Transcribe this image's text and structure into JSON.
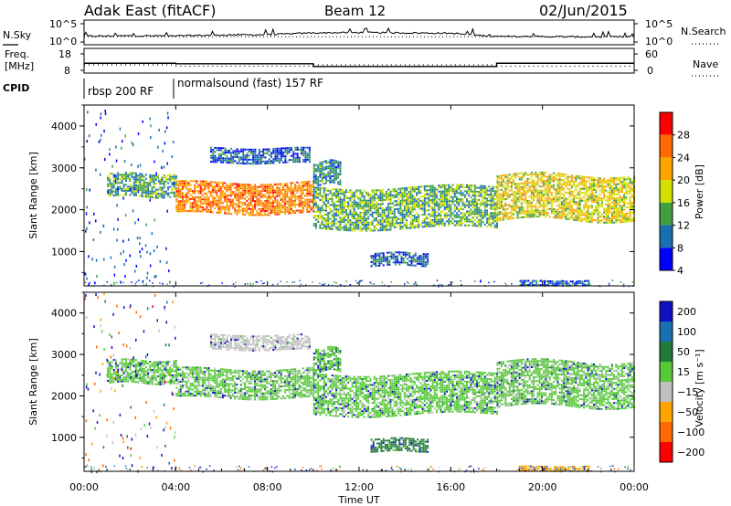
{
  "header": {
    "station": "Adak East (fitACF)",
    "beam": "Beam 12",
    "date": "02/Jun/2015"
  },
  "noise_panel": {
    "left_label": "N.Sky",
    "right_label": "N.Search",
    "left_ticks": [
      "10^5",
      "10^0"
    ],
    "right_ticks": [
      "10^5",
      "10^0"
    ]
  },
  "freq_panel": {
    "left_label_1": "Freq.",
    "left_label_2": "[MHz]",
    "right_label": "Nave",
    "left_ticks": [
      "18",
      "8"
    ],
    "right_ticks": [
      "60",
      "0"
    ]
  },
  "cpid": {
    "label": "CPID",
    "modes": [
      {
        "name": "rbsp 200 RF",
        "start_hour": 0,
        "end_hour": 4
      },
      {
        "name": "normalsound (fast) 157 RF",
        "start_hour": 4,
        "end_hour": 24
      }
    ]
  },
  "power_colorbar": {
    "label": "Power [dB]",
    "ticks": [
      "28",
      "24",
      "20",
      "16",
      "12",
      "8",
      "4"
    ],
    "colors": [
      "#ff0000",
      "#ff6a00",
      "#ffa500",
      "#d4e000",
      "#40a040",
      "#1a6fb0",
      "#0000ff"
    ]
  },
  "velocity_colorbar": {
    "label": "Velocity [m s⁻¹]",
    "ticks": [
      "200",
      "100",
      "50",
      "15",
      "−15",
      "−50",
      "−100",
      "−200"
    ],
    "colors": [
      "#1010c0",
      "#1a6fb0",
      "#207a3a",
      "#57c83a",
      "#c0c0c0",
      "#ffa500",
      "#ff6a00",
      "#ff0000"
    ]
  },
  "axes": {
    "ylabel": "Slant Range [km]",
    "yticks": [
      "4000",
      "3000",
      "2000",
      "1000"
    ],
    "xlabel": "Time UT",
    "xticks": [
      "00:00",
      "04:00",
      "08:00",
      "12:00",
      "16:00",
      "20:00",
      "00:00"
    ]
  },
  "chart_data": [
    {
      "type": "line",
      "title": "N.Sky / N.Search",
      "x_hours": [
        0,
        2,
        4,
        6,
        8,
        10,
        12,
        14,
        16,
        18,
        20,
        22,
        24
      ],
      "series": [
        {
          "name": "N.Sky",
          "values": [
            1.6,
            1.7,
            1.7,
            1.9,
            2.0,
            2.5,
            2.6,
            2.5,
            2.4,
            1.5,
            1.5,
            1.4,
            1.4
          ]
        }
      ],
      "ylim": [
        0,
        5
      ],
      "scale": "log10"
    },
    {
      "type": "line",
      "title": "Freq. [MHz] / Nave",
      "series": [
        {
          "name": "Freq.",
          "segments": [
            {
              "start_hour": 0,
              "end_hour": 4,
              "value": 12.3
            },
            {
              "start_hour": 4,
              "end_hour": 10,
              "value": 12.0
            },
            {
              "start_hour": 10,
              "end_hour": 18,
              "value": 10.3
            },
            {
              "start_hour": 18,
              "end_hour": 24,
              "value": 12.3
            }
          ]
        },
        {
          "name": "Nave",
          "segments": [
            {
              "start_hour": 0,
              "end_hour": 4,
              "value": 20
            },
            {
              "start_hour": 4,
              "end_hour": 10,
              "value": 15
            },
            {
              "start_hour": 10,
              "end_hour": 18,
              "value": 20
            },
            {
              "start_hour": 18,
              "end_hour": 24,
              "value": 15
            }
          ]
        }
      ],
      "ylim_left": [
        8,
        18
      ],
      "ylim_right": [
        0,
        60
      ]
    },
    {
      "type": "heatmap",
      "quantity": "Power [dB]",
      "xlabel": "Time UT",
      "ylabel": "Slant Range [km]",
      "xlim_hours": [
        0,
        24
      ],
      "ylim_km": [
        180,
        4500
      ],
      "clim": [
        0,
        30
      ],
      "regions": [
        {
          "t_start": 1.0,
          "t_end": 4.0,
          "range_start": 2300,
          "range_end": 2900,
          "power": 10
        },
        {
          "t_start": 4.0,
          "t_end": 10.0,
          "range_start": 1900,
          "range_end": 2700,
          "power": 22
        },
        {
          "t_start": 5.5,
          "t_end": 9.8,
          "range_start": 3100,
          "range_end": 3500,
          "power": 6
        },
        {
          "t_start": 10.0,
          "t_end": 18.0,
          "range_start": 1500,
          "range_end": 2600,
          "power": 11
        },
        {
          "t_start": 10.0,
          "t_end": 11.2,
          "range_start": 2600,
          "range_end": 3200,
          "power": 8
        },
        {
          "t_start": 12.5,
          "t_end": 15.0,
          "range_start": 650,
          "range_end": 1000,
          "power": 6
        },
        {
          "t_start": 18.0,
          "t_end": 24.0,
          "range_start": 1700,
          "range_end": 2900,
          "power": 16
        },
        {
          "t_start": 19.0,
          "t_end": 22.0,
          "range_start": 180,
          "range_end": 320,
          "power": 5
        }
      ]
    },
    {
      "type": "heatmap",
      "quantity": "Velocity [m s⁻¹]",
      "xlabel": "Time UT",
      "ylabel": "Slant Range [km]",
      "xlim_hours": [
        0,
        24
      ],
      "ylim_km": [
        180,
        4500
      ],
      "clim": [
        -200,
        200
      ],
      "regions": [
        {
          "t_start": 1.0,
          "t_end": 4.0,
          "range_start": 2300,
          "range_end": 2900,
          "velocity": 0
        },
        {
          "t_start": 4.0,
          "t_end": 10.0,
          "range_start": 1900,
          "range_end": 2700,
          "velocity": 0
        },
        {
          "t_start": 5.5,
          "t_end": 9.8,
          "range_start": 3100,
          "range_end": 3500,
          "velocity": -30
        },
        {
          "t_start": 10.0,
          "t_end": 18.0,
          "range_start": 1500,
          "range_end": 2600,
          "velocity": 0
        },
        {
          "t_start": 10.0,
          "t_end": 11.2,
          "range_start": 2600,
          "range_end": 3200,
          "velocity": 10
        },
        {
          "t_start": 12.5,
          "t_end": 15.0,
          "range_start": 650,
          "range_end": 1000,
          "velocity": 30
        },
        {
          "t_start": 18.0,
          "t_end": 24.0,
          "range_start": 1700,
          "range_end": 2900,
          "velocity": 0
        },
        {
          "t_start": 19.0,
          "t_end": 22.0,
          "range_start": 180,
          "range_end": 320,
          "velocity": -60
        }
      ]
    }
  ]
}
